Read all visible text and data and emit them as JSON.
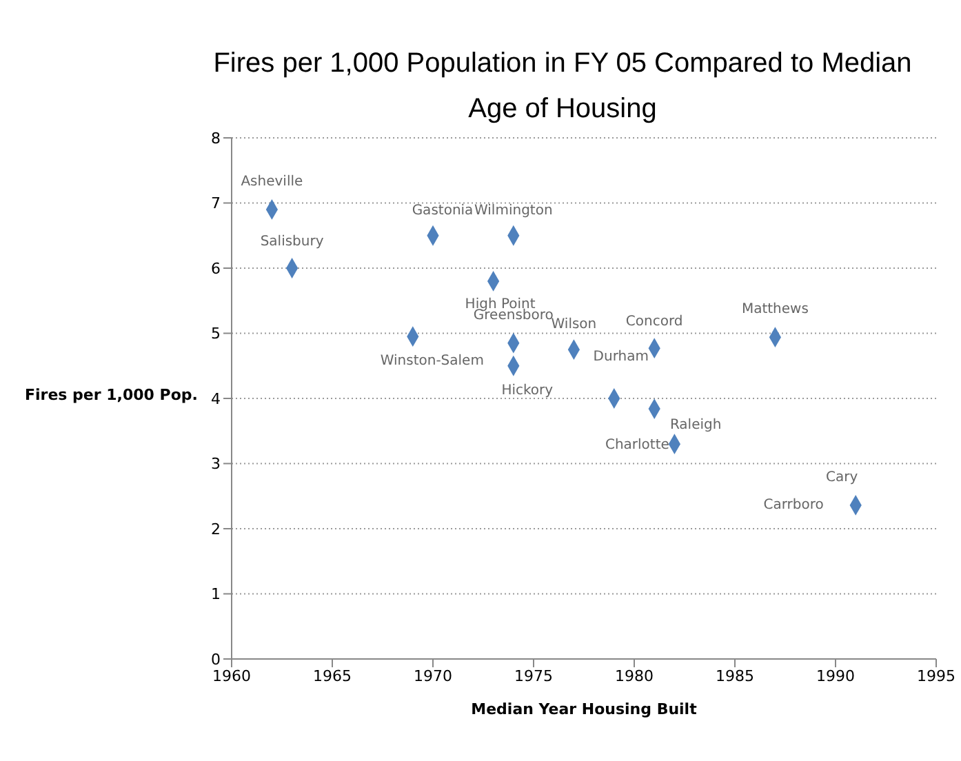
{
  "chart_data": {
    "type": "scatter",
    "title": "Fires per 1,000 Population in FY 05 Compared to Median Age of Housing",
    "xlabel": "Median Year Housing Built",
    "ylabel": "Fires per 1,000 Pop.",
    "series": [
      {
        "color": "#4f81bd",
        "x": [
          1962,
          1963,
          1970,
          1974,
          1973,
          1974,
          1974,
          1969,
          1977,
          1981,
          1979,
          1981,
          1982,
          1987,
          1991
        ],
        "values": [
          6.9,
          6.0,
          6.5,
          6.5,
          5.8,
          4.85,
          4.5,
          4.95,
          4.75,
          4.77,
          4.0,
          3.84,
          3.3,
          4.94,
          2.36
        ]
      }
    ],
    "annotations": [
      {
        "text": "Asheville",
        "x": 1962,
        "y": 6.9
      },
      {
        "text": "Salisbury",
        "x": 1963,
        "y": 6.0
      },
      {
        "text": "Gastonia",
        "x": 1970,
        "y": 6.5
      },
      {
        "text": "Wilmington",
        "x": 1974,
        "y": 6.5
      },
      {
        "text": "High Point",
        "x": 1973,
        "y": 5.8
      },
      {
        "text": "Greensboro",
        "x": 1974,
        "y": 4.85
      },
      {
        "text": "Hickory",
        "x": 1974,
        "y": 4.5
      },
      {
        "text": "Winston-Salem",
        "x": 1969,
        "y": 4.95
      },
      {
        "text": "Wilson",
        "x": 1977,
        "y": 4.75
      },
      {
        "text": "Concord",
        "x": 1981,
        "y": 4.77
      },
      {
        "text": "Durham",
        "x": 1979,
        "y": 4.0
      },
      {
        "text": "Raleigh",
        "x": 1981,
        "y": 3.84
      },
      {
        "text": "Charlotte",
        "x": 1982,
        "y": 3.3
      },
      {
        "text": "Matthews",
        "x": 1987,
        "y": 4.94
      },
      {
        "text": "Cary",
        "x": 1991,
        "y": 2.36
      },
      {
        "text": "Carrboro",
        "x": 1991,
        "y": 2.36
      }
    ],
    "xlim": [
      1960,
      1995
    ],
    "xticks": [
      1960,
      1965,
      1970,
      1975,
      1980,
      1985,
      1990,
      1995
    ],
    "ylim": [
      0,
      8
    ],
    "yticks": [
      0,
      1,
      2,
      3,
      4,
      5,
      6,
      7,
      8
    ],
    "grid": "y",
    "marker": "diamond"
  }
}
